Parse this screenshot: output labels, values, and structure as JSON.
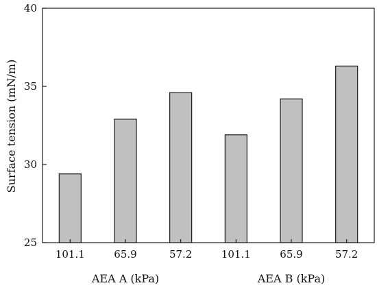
{
  "chart_data": {
    "type": "bar",
    "categories": [
      "101.1",
      "65.9",
      "57.2",
      "101.1",
      "65.9",
      "57.2"
    ],
    "groups": [
      {
        "label": "AEA A (kPa)",
        "categories": [
          "101.1",
          "65.9",
          "57.2"
        ]
      },
      {
        "label": "AEA B (kPa)",
        "categories": [
          "101.1",
          "65.9",
          "57.2"
        ]
      }
    ],
    "values": [
      29.4,
      32.9,
      34.6,
      31.9,
      34.2,
      36.3
    ],
    "title": "",
    "xlabel": "",
    "ylabel": "Surface tension (mN/m)",
    "ylim": [
      25,
      40
    ],
    "yticks": [
      25,
      30,
      35,
      40
    ],
    "grid": false,
    "legend": "none",
    "bar_fill": "#c0c0c0",
    "bar_edge": "#1a1a1a"
  }
}
